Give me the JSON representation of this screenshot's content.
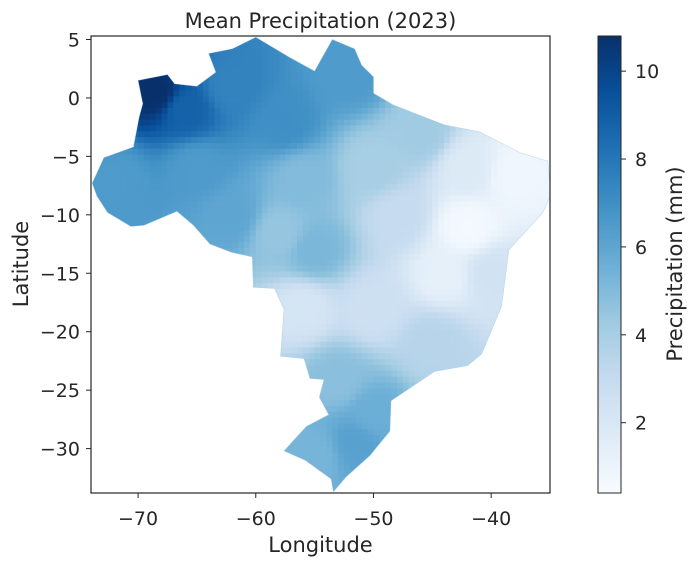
{
  "chart_data": {
    "type": "heatmap",
    "title": "Mean Precipitation (2023)",
    "xlabel": "Longitude",
    "ylabel": "Latitude",
    "xlim": [
      -74,
      -35
    ],
    "ylim": [
      -33.8,
      5.3
    ],
    "xticks": [
      {
        "value": -70,
        "label": "−70"
      },
      {
        "value": -60,
        "label": "−60"
      },
      {
        "value": -50,
        "label": "−50"
      },
      {
        "value": -40,
        "label": "−40"
      }
    ],
    "yticks": [
      {
        "value": 5,
        "label": "5"
      },
      {
        "value": 0,
        "label": "0"
      },
      {
        "value": -5,
        "label": "−5"
      },
      {
        "value": -10,
        "label": "−10"
      },
      {
        "value": -15,
        "label": "−15"
      },
      {
        "value": -20,
        "label": "−20"
      },
      {
        "value": -25,
        "label": "−25"
      },
      {
        "value": -30,
        "label": "−30"
      }
    ],
    "grid": false,
    "colorbar": {
      "label": "Precipitation (mm)",
      "range": [
        0.4,
        10.8
      ],
      "colormap": [
        "#f7fbff",
        "#deebf7",
        "#c6dbef",
        "#9ecae1",
        "#6baed6",
        "#4292c6",
        "#2171b5",
        "#08519c",
        "#08306b"
      ],
      "ticks": [
        {
          "value": 2,
          "label": "2"
        },
        {
          "value": 4,
          "label": "4"
        },
        {
          "value": 6,
          "label": "6"
        },
        {
          "value": 8,
          "label": "8"
        },
        {
          "value": 10,
          "label": "10"
        }
      ]
    },
    "region_outline": [
      [
        -53.5,
        5.0
      ],
      [
        -51.6,
        4.2
      ],
      [
        -51.0,
        2.8
      ],
      [
        -50.0,
        1.8
      ],
      [
        -50.0,
        0.4
      ],
      [
        -48.3,
        -0.6
      ],
      [
        -44.0,
        -2.3
      ],
      [
        -41.0,
        -2.9
      ],
      [
        -37.5,
        -4.7
      ],
      [
        -35.2,
        -5.4
      ],
      [
        -34.9,
        -8.2
      ],
      [
        -35.6,
        -9.8
      ],
      [
        -38.5,
        -13.0
      ],
      [
        -39.1,
        -17.8
      ],
      [
        -40.8,
        -21.9
      ],
      [
        -42.0,
        -22.9
      ],
      [
        -44.8,
        -23.4
      ],
      [
        -48.5,
        -25.9
      ],
      [
        -48.6,
        -28.5
      ],
      [
        -50.3,
        -30.6
      ],
      [
        -52.3,
        -32.4
      ],
      [
        -53.4,
        -33.7
      ],
      [
        -53.6,
        -32.6
      ],
      [
        -55.8,
        -31.0
      ],
      [
        -57.6,
        -30.2
      ],
      [
        -55.7,
        -28.1
      ],
      [
        -53.8,
        -27.1
      ],
      [
        -54.6,
        -25.6
      ],
      [
        -54.2,
        -24.1
      ],
      [
        -55.4,
        -24.0
      ],
      [
        -55.9,
        -22.3
      ],
      [
        -57.9,
        -22.1
      ],
      [
        -57.6,
        -18.1
      ],
      [
        -58.4,
        -16.3
      ],
      [
        -60.2,
        -16.2
      ],
      [
        -60.3,
        -13.6
      ],
      [
        -62.1,
        -13.2
      ],
      [
        -63.9,
        -12.5
      ],
      [
        -65.3,
        -10.9
      ],
      [
        -66.7,
        -9.7
      ],
      [
        -69.5,
        -10.9
      ],
      [
        -70.6,
        -11.0
      ],
      [
        -72.6,
        -9.8
      ],
      [
        -73.5,
        -8.4
      ],
      [
        -73.9,
        -7.3
      ],
      [
        -72.9,
        -5.1
      ],
      [
        -70.4,
        -4.2
      ],
      [
        -69.9,
        -1.6
      ],
      [
        -69.6,
        -0.5
      ],
      [
        -70.0,
        1.5
      ],
      [
        -67.5,
        2.0
      ],
      [
        -66.9,
        1.2
      ],
      [
        -65.0,
        1.0
      ],
      [
        -63.4,
        2.2
      ],
      [
        -64.0,
        3.8
      ],
      [
        -62.0,
        4.2
      ],
      [
        -60.6,
        4.9
      ],
      [
        -60.0,
        5.2
      ],
      [
        -57.0,
        3.4
      ],
      [
        -55.0,
        2.3
      ],
      [
        -53.5,
        5.0
      ]
    ],
    "field_anchors": [
      {
        "lon": -68.5,
        "lat": 0.5,
        "value": 10.8
      },
      {
        "lon": -66.0,
        "lat": -1.0,
        "value": 8.8
      },
      {
        "lon": -62.0,
        "lat": 1.0,
        "value": 7.5
      },
      {
        "lon": -57.5,
        "lat": -2.0,
        "value": 7.0
      },
      {
        "lon": -52.0,
        "lat": 2.0,
        "value": 6.5
      },
      {
        "lon": -72.0,
        "lat": -7.0,
        "value": 6.5
      },
      {
        "lon": -65.0,
        "lat": -6.0,
        "value": 6.5
      },
      {
        "lon": -62.0,
        "lat": -10.0,
        "value": 6.0
      },
      {
        "lon": -56.0,
        "lat": -7.0,
        "value": 5.0
      },
      {
        "lon": -58.0,
        "lat": -11.5,
        "value": 4.5
      },
      {
        "lon": -55.0,
        "lat": -13.0,
        "value": 5.2
      },
      {
        "lon": -50.0,
        "lat": -6.0,
        "value": 4.0
      },
      {
        "lon": -46.0,
        "lat": -3.0,
        "value": 4.2
      },
      {
        "lon": -48.0,
        "lat": -10.0,
        "value": 3.0
      },
      {
        "lon": -42.0,
        "lat": -6.0,
        "value": 1.8
      },
      {
        "lon": -38.0,
        "lat": -6.5,
        "value": 0.8
      },
      {
        "lon": -42.0,
        "lat": -11.0,
        "value": 0.6
      },
      {
        "lon": -44.0,
        "lat": -15.0,
        "value": 1.3
      },
      {
        "lon": -40.0,
        "lat": -15.0,
        "value": 2.4
      },
      {
        "lon": -56.0,
        "lat": -18.0,
        "value": 2.2
      },
      {
        "lon": -50.0,
        "lat": -18.0,
        "value": 2.6
      },
      {
        "lon": -45.0,
        "lat": -21.0,
        "value": 3.5
      },
      {
        "lon": -53.0,
        "lat": -24.0,
        "value": 4.8
      },
      {
        "lon": -50.0,
        "lat": -27.0,
        "value": 5.6
      },
      {
        "lon": -51.5,
        "lat": -29.5,
        "value": 6.2
      },
      {
        "lon": -55.0,
        "lat": -30.5,
        "value": 5.3
      }
    ]
  }
}
